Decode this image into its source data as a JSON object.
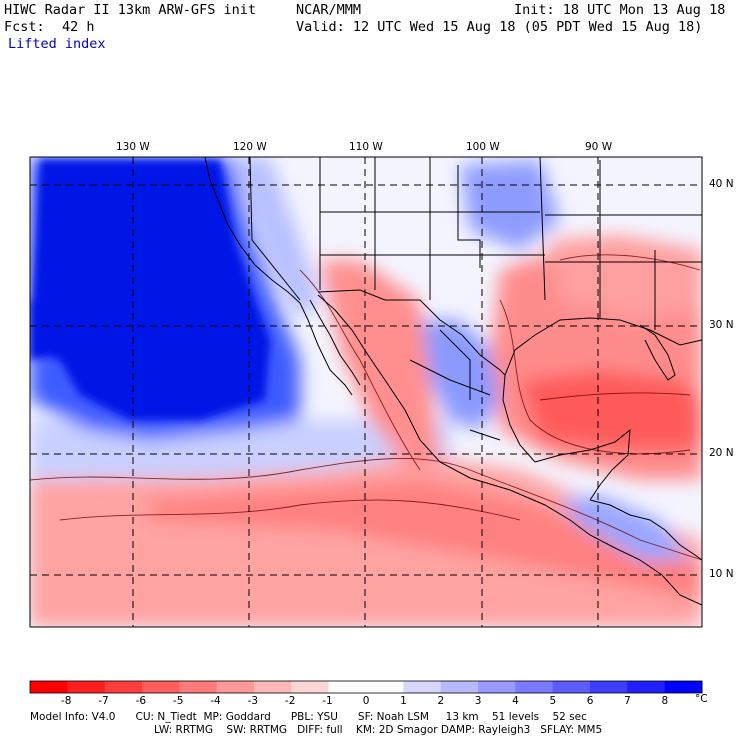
{
  "header": {
    "model_title": "HIWC Radar II 13km ARW-GFS init",
    "institution": "NCAR/MMM",
    "init_time": "Init: 18 UTC Mon 13 Aug 18",
    "forecast_label": "Fcst:",
    "forecast_hour": "42 h",
    "valid_time": "Valid: 12 UTC Wed 15 Aug 18 (05 PDT Wed 15 Aug 18)",
    "field_name": "Lifted index"
  },
  "map": {
    "lon_labels": [
      "130 W",
      "120 W",
      "110 W",
      "100 W",
      "90 W"
    ],
    "lat_labels": [
      "40 N",
      "30 N",
      "20 N",
      "10 N"
    ]
  },
  "colorbar": {
    "tick_labels": [
      "-8",
      "-7",
      "-6",
      "-5",
      "-4",
      "-3",
      "-2",
      "-1",
      "0",
      "1",
      "2",
      "3",
      "4",
      "5",
      "6",
      "7",
      "8"
    ],
    "unit": "°C",
    "colors": [
      "#ff0000",
      "#ff1f1f",
      "#ff3d3d",
      "#ff5c5c",
      "#ff7a7a",
      "#ff9999",
      "#ffb8b8",
      "#ffd6d6",
      "#ffffff",
      "#ffffff",
      "#d6d6ff",
      "#b8b8ff",
      "#9999ff",
      "#7a7aff",
      "#5c5cff",
      "#3d3dff",
      "#1f1fff",
      "#0000ff"
    ]
  },
  "footer": {
    "line1": "Model Info: V4.0      CU: N_Tiedt  MP: Goddard      PBL: YSU      SF: Noah LSM     13 km    51 levels    52 sec",
    "line2": "LW: RRTMG    SW: RRTMG   DIFF: full    KM: 2D Smagor DAMP: Rayleigh3   SFLAY: MM5"
  },
  "colors": {
    "ocean_blue": "#0014e6",
    "warm_red": "#ff6666",
    "neutral": "#ffffff"
  }
}
